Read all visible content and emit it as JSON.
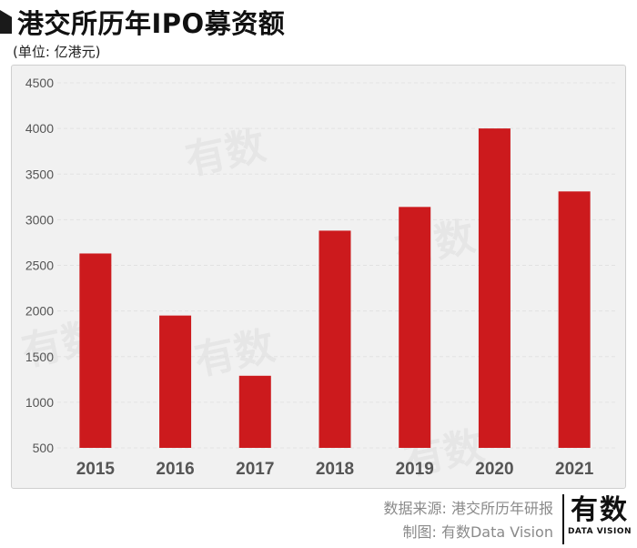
{
  "header": {
    "title": "港交所历年IPO募资额",
    "unit": "(单位: 亿港元)"
  },
  "chart_data": {
    "type": "bar",
    "title": "港交所历年IPO募资额",
    "ylabel": "亿港元",
    "xlabel": "",
    "categories": [
      "2015",
      "2016",
      "2017",
      "2018",
      "2019",
      "2020",
      "2021"
    ],
    "values": [
      2630,
      1950,
      1290,
      2880,
      3140,
      4000,
      3310
    ],
    "ylim": [
      500,
      4500
    ],
    "yticks": [
      500,
      1000,
      1500,
      2000,
      2500,
      3000,
      3500,
      4000,
      4500
    ],
    "ytick_labels": [
      "500",
      "1000",
      "1500",
      "2000",
      "2500",
      "3000",
      "3500",
      "4000",
      "4500"
    ],
    "grid": true,
    "bar_color": "#cc1a1d"
  },
  "footer": {
    "source": "数据来源: 港交所历年研报",
    "credit": "制图: 有数Data Vision"
  },
  "logo": {
    "text": "有数",
    "subtext": "DATA VISION"
  },
  "watermark": {
    "text": "有数"
  }
}
